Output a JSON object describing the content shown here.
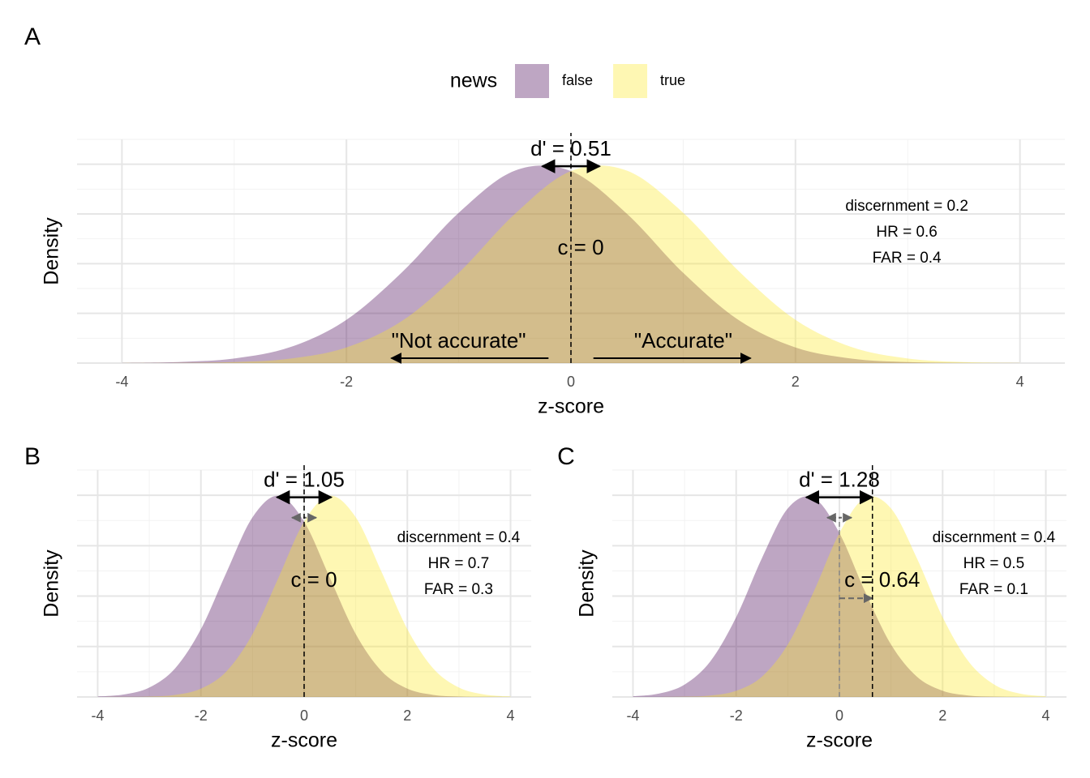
{
  "chart_data": [
    {
      "type": "area",
      "panel": "A",
      "legend": {
        "title": "news"
      },
      "x": [
        -4,
        -3.5,
        -3,
        -2.5,
        -2,
        -1.5,
        -1,
        -0.5,
        0,
        0.5,
        1,
        1.5,
        2,
        2.5,
        3,
        3.5,
        4
      ],
      "series": [
        {
          "name": "false",
          "color": "#440154",
          "mean": -0.255,
          "values": [
            0.00036,
            0.00206,
            0.00923,
            0.0321,
            0.0871,
            0.1838,
            0.3023,
            0.3871,
            0.3862,
            0.3,
            0.1815,
            0.0855,
            0.0314,
            0.009,
            0.002,
            0.00035,
            5e-05
          ]
        },
        {
          "name": "true",
          "color": "#fde725",
          "mean": 0.255,
          "values": [
            5e-05,
            0.00035,
            0.002,
            0.009,
            0.0314,
            0.0855,
            0.1815,
            0.3,
            0.3862,
            0.3871,
            0.3023,
            0.1838,
            0.0871,
            0.0321,
            0.00923,
            0.00206,
            0.00036
          ]
        }
      ],
      "xlim": [
        -4.4,
        4.4
      ],
      "ylim": [
        0,
        0.45
      ],
      "xticks": [
        -4,
        -2,
        0,
        2,
        4
      ],
      "yticks": [
        0,
        0.1,
        0.2,
        0.3,
        0.4
      ],
      "x_label": "z-score",
      "y_label": "Density",
      "criterion": 0,
      "dprime_label": "d' = 0.51",
      "c_label": "c = 0",
      "stats": [
        "discernment = 0.2",
        "HR = 0.6",
        "FAR = 0.4"
      ],
      "response_labels": [
        "\"Not accurate\"",
        "\"Accurate\""
      ]
    },
    {
      "type": "area",
      "panel": "B",
      "x": [
        -4,
        -3.5,
        -3,
        -2.5,
        -2,
        -1.5,
        -1,
        -0.5,
        0,
        0.5,
        1,
        1.5,
        2,
        2.5,
        3,
        3.5,
        4
      ],
      "series": [
        {
          "name": "false",
          "color": "#440154",
          "mean": -0.525,
          "values": [
            0.00095,
            0.00478,
            0.0187,
            0.0567,
            0.1344,
            0.2481,
            0.3563,
            0.3989,
            0.3476,
            0.2359,
            0.1247,
            0.0513,
            0.0165,
            0.0041,
            0.0008,
            0.00012,
            1e-05
          ]
        },
        {
          "name": "true",
          "color": "#fde725",
          "mean": 0.525,
          "values": [
            1e-05,
            0.00012,
            0.0008,
            0.0041,
            0.0165,
            0.0513,
            0.1247,
            0.2359,
            0.3476,
            0.3989,
            0.3563,
            0.2481,
            0.1344,
            0.0567,
            0.0187,
            0.00478,
            0.00095
          ]
        }
      ],
      "xlim": [
        -4.4,
        4.4
      ],
      "ylim": [
        0,
        0.45
      ],
      "xticks": [
        -4,
        -2,
        0,
        2,
        4
      ],
      "yticks": [
        0,
        0.1,
        0.2,
        0.3,
        0.4
      ],
      "x_label": "z-score",
      "y_label": "Density",
      "criterion": 0,
      "neutral": 0,
      "dprime_label": "d' = 1.05",
      "c_label": "c = 0",
      "stats": [
        "discernment = 0.4",
        "HR = 0.7",
        "FAR = 0.3"
      ]
    },
    {
      "type": "area",
      "panel": "C",
      "x": [
        -4,
        -3.5,
        -3,
        -2.5,
        -2,
        -1.5,
        -1,
        -0.5,
        0,
        0.5,
        1,
        1.5,
        2,
        2.5,
        3,
        3.5,
        4
      ],
      "series": [
        {
          "name": "false",
          "color": "#440154",
          "mean": -0.64,
          "values": [
            0.00141,
            0.00668,
            0.0246,
            0.0707,
            0.1582,
            0.2755,
            0.3739,
            0.395,
            0.3251,
            0.2083,
            0.104,
            0.0404,
            0.0122,
            0.0029,
            0.00053,
            8e-05,
            1e-05
          ]
        },
        {
          "name": "true",
          "color": "#fde725",
          "mean": 0.64,
          "values": [
            1e-05,
            8e-05,
            0.00053,
            0.0029,
            0.0122,
            0.0404,
            0.104,
            0.2083,
            0.3251,
            0.395,
            0.3739,
            0.2755,
            0.1582,
            0.0707,
            0.0246,
            0.00668,
            0.00141
          ]
        }
      ],
      "xlim": [
        -4.4,
        4.4
      ],
      "ylim": [
        0,
        0.45
      ],
      "xticks": [
        -4,
        -2,
        0,
        2,
        4
      ],
      "yticks": [
        0,
        0.1,
        0.2,
        0.3,
        0.4
      ],
      "x_label": "z-score",
      "y_label": "Density",
      "criterion": 0.64,
      "neutral": 0,
      "dprime_label": "d' = 1.28",
      "c_label": "c = 0.64",
      "stats": [
        "discernment = 0.4",
        "HR = 0.5",
        "FAR = 0.1"
      ]
    }
  ]
}
